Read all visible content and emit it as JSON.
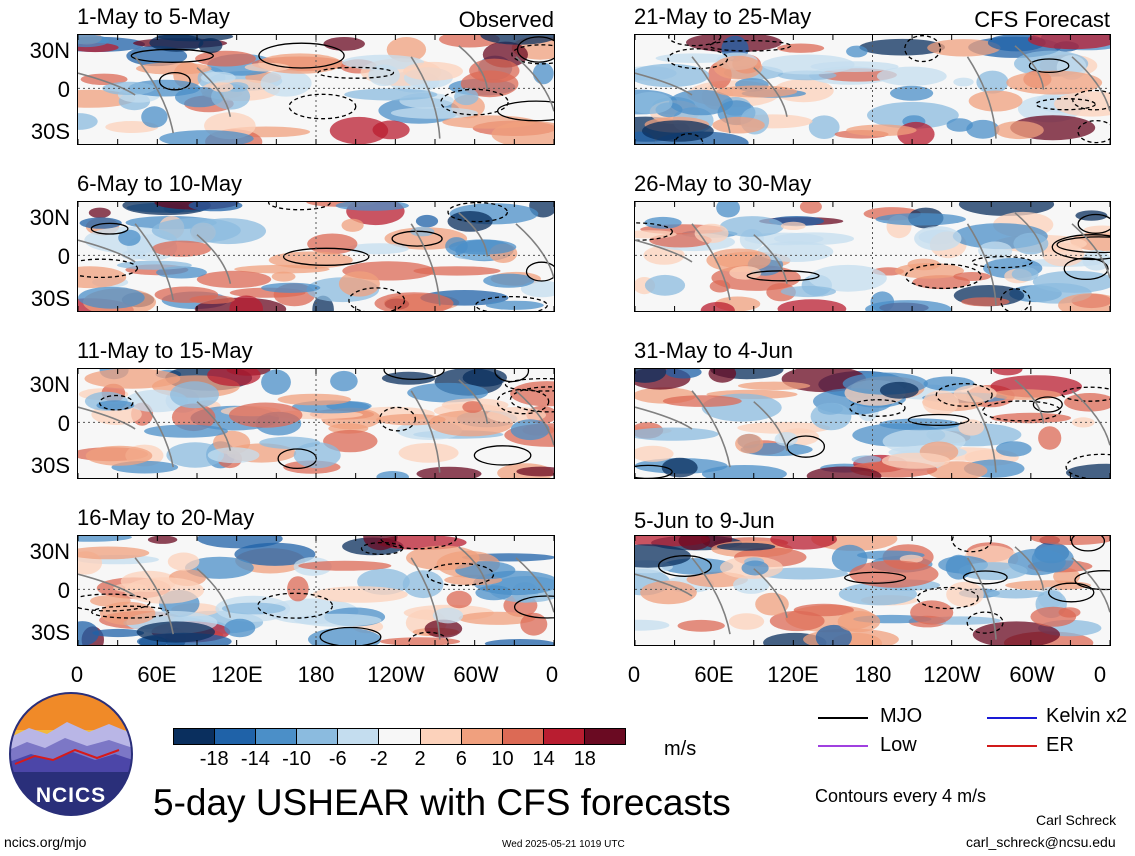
{
  "panels": [
    {
      "title": "1-May to 5-May",
      "tag": "Observed"
    },
    {
      "title": "21-May to 25-May",
      "tag": "CFS Forecast"
    },
    {
      "title": "6-May to 10-May",
      "tag": ""
    },
    {
      "title": "26-May to 30-May",
      "tag": ""
    },
    {
      "title": "11-May to 15-May",
      "tag": ""
    },
    {
      "title": "31-May to 4-Jun",
      "tag": ""
    },
    {
      "title": "16-May to 20-May",
      "tag": ""
    },
    {
      "title": "5-Jun to 9-Jun",
      "tag": ""
    }
  ],
  "y_axis_labels": [
    "30N",
    "0",
    "30S"
  ],
  "x_axis_labels": [
    "0",
    "60E",
    "120E",
    "180",
    "120W",
    "60W",
    "0"
  ],
  "colorbar": {
    "colors": [
      "#0a2f5e",
      "#1f62a8",
      "#4b8fc8",
      "#8bbbdf",
      "#c4ddef",
      "#f7f7f7",
      "#fcd2bb",
      "#f0a07e",
      "#dc6a55",
      "#b91d30",
      "#6a0a22"
    ],
    "labels": [
      "-18",
      "-14",
      "-10",
      "-6",
      "-2",
      "2",
      "6",
      "10",
      "14",
      "18"
    ],
    "units": "m/s"
  },
  "legend": {
    "items": [
      {
        "label": "MJO",
        "color": "#000000"
      },
      {
        "label": "Kelvin x2",
        "color": "#1a1ad6"
      },
      {
        "label": "Low",
        "color": "#a040e0"
      },
      {
        "label": "ER",
        "color": "#d11a1a"
      }
    ],
    "contours_note": "Contours every 4 m/s"
  },
  "title": "5-day USHEAR with CFS forecasts",
  "logo_text": "NCICS",
  "footer": {
    "url": "ncics.org/mjo",
    "timestamp": "Wed 2025-05-21 1019 UTC",
    "author": "Carl Schreck",
    "email": "carl_schreck@ncsu.edu"
  }
}
